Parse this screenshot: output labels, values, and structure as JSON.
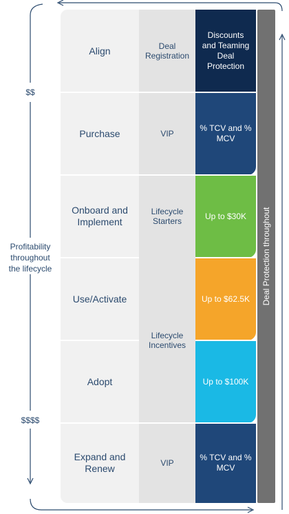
{
  "stages": [
    {
      "label": "Align",
      "program": "Deal Registration",
      "benefit": "Discounts and Teaming Deal Protection",
      "color": "#0f2a4f"
    },
    {
      "label": "Purchase",
      "program": "VIP",
      "benefit": "% TCV and % MCV",
      "color": "#1f4779"
    },
    {
      "label": "Onboard and Implement",
      "program": "Lifecycle Starters",
      "benefit": "Up to $30K",
      "color": "#6ebd45"
    },
    {
      "label": "Use/Activate",
      "program": "Lifecycle Incentives",
      "benefit": "Up to $62.5K",
      "color": "#f5a52a"
    },
    {
      "label": "Adopt",
      "program": "",
      "benefit": "Up to $100K",
      "color": "#1ab9e5"
    },
    {
      "label": "Expand and Renew",
      "program": "VIP",
      "benefit": "% TCV and % MCV",
      "color": "#1f4779"
    }
  ],
  "left_axis": {
    "top_label": "$$",
    "middle_label": "Profitability throughout the lifecycle",
    "bottom_label": "$$$$"
  },
  "side_bar": {
    "label": "Deal Protection throughout"
  },
  "colors": {
    "text": "#2b4a6e",
    "bar": "#717171",
    "arrow": "#2b4a6e"
  }
}
